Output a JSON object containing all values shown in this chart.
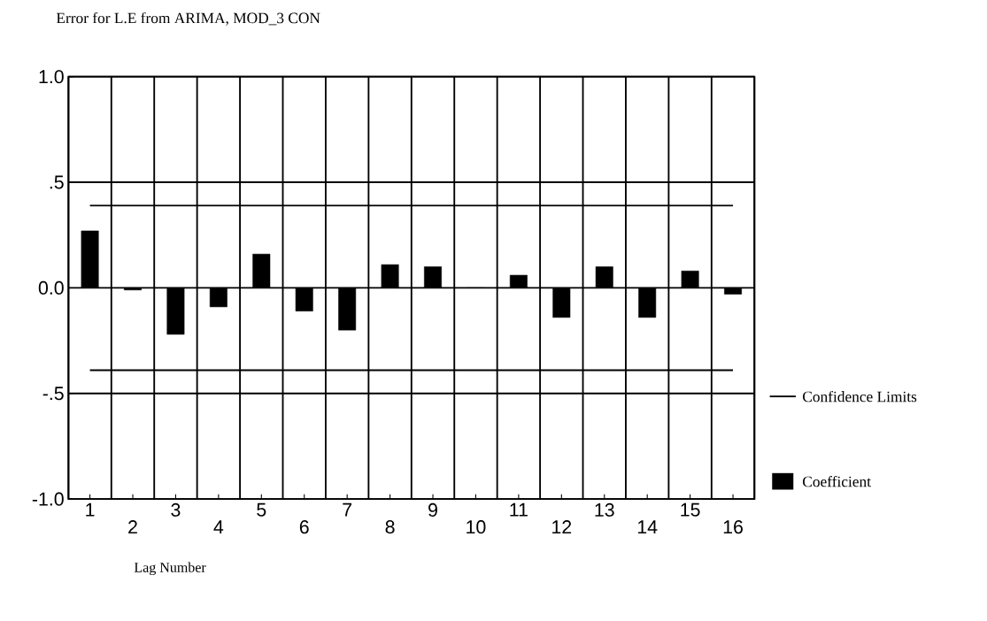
{
  "chart_data": {
    "type": "bar",
    "title": "Error for L.E from ARIMA, MOD_3 CON",
    "xlabel": "Lag Number",
    "categories": [
      "1",
      "2",
      "3",
      "4",
      "5",
      "6",
      "7",
      "8",
      "9",
      "10",
      "11",
      "12",
      "13",
      "14",
      "15",
      "16"
    ],
    "series": [
      {
        "name": "Coefficient",
        "type": "bar",
        "color": "#000000",
        "values": [
          0.27,
          -0.01,
          -0.22,
          -0.09,
          0.16,
          -0.11,
          -0.2,
          0.11,
          0.1,
          0,
          0.06,
          -0.14,
          0.1,
          -0.14,
          0.08,
          -0.03
        ]
      },
      {
        "name": "Confidence Limits",
        "type": "line",
        "color": "#000000",
        "values": [
          0.39,
          0.39,
          0.39,
          0.39,
          0.39,
          0.39,
          0.39,
          0.39,
          0.39,
          0.39,
          0.39,
          0.39,
          0.39,
          0.39,
          0.39,
          0.39
        ]
      },
      {
        "type": "line",
        "color": "#000000",
        "values": [
          -0.39,
          -0.39,
          -0.39,
          -0.39,
          -0.39,
          -0.39,
          -0.39,
          -0.39,
          -0.39,
          -0.39,
          -0.39,
          -0.39,
          -0.39,
          -0.39,
          -0.39,
          -0.39
        ]
      }
    ],
    "ylim": [
      -1,
      1
    ],
    "yticks": [
      {
        "value": 1,
        "label": "1.0"
      },
      {
        "value": 0.5,
        "label": ".5"
      },
      {
        "value": 0,
        "label": "0.0"
      },
      {
        "value": -0.5,
        "label": "-.5"
      },
      {
        "value": -1,
        "label": "-1.0"
      }
    ],
    "grid": true,
    "legend": "right"
  }
}
